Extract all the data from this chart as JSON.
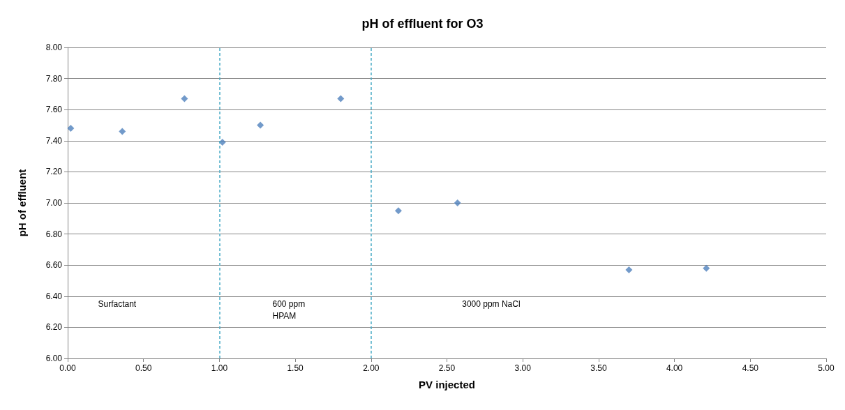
{
  "chart_data": {
    "type": "scatter",
    "title": "pH of effluent for O3",
    "xlabel": "PV injected",
    "ylabel": "pH of effluent",
    "x": [
      0.02,
      0.36,
      0.77,
      1.02,
      1.27,
      1.8,
      2.18,
      2.57,
      3.7,
      4.21
    ],
    "values": [
      7.48,
      7.46,
      7.67,
      7.39,
      7.5,
      7.67,
      6.95,
      7.0,
      6.57,
      6.58
    ],
    "color": "#4f81bd",
    "marker": "diamond",
    "xlim": [
      0,
      5
    ],
    "xticks": [
      {
        "value": 0,
        "label": "0.00"
      },
      {
        "value": 0.5,
        "label": "0.50"
      },
      {
        "value": 1,
        "label": "1.00"
      },
      {
        "value": 1.5,
        "label": "1.50"
      },
      {
        "value": 2,
        "label": "2.00"
      },
      {
        "value": 2.5,
        "label": "2.50"
      },
      {
        "value": 3,
        "label": "3.00"
      },
      {
        "value": 3.5,
        "label": "3.50"
      },
      {
        "value": 4,
        "label": "4.00"
      },
      {
        "value": 4.5,
        "label": "4.50"
      },
      {
        "value": 5,
        "label": "5.00"
      }
    ],
    "ylim": [
      6,
      8
    ],
    "yticks": [
      {
        "value": 6,
        "label": "6.00"
      },
      {
        "value": 6.2,
        "label": "6.20"
      },
      {
        "value": 6.4,
        "label": "6.40"
      },
      {
        "value": 6.6,
        "label": "6.60"
      },
      {
        "value": 6.8,
        "label": "6.80"
      },
      {
        "value": 7,
        "label": "7.00"
      },
      {
        "value": 7.2,
        "label": "7.20"
      },
      {
        "value": 7.4,
        "label": "7.40"
      },
      {
        "value": 7.6,
        "label": "7.60"
      },
      {
        "value": 7.8,
        "label": "7.80"
      },
      {
        "value": 8,
        "label": "8.00"
      }
    ],
    "grid": "y",
    "ref_lines": [
      {
        "axis": "x",
        "value": 1,
        "color": "#4bacc6",
        "line_style": "dashed"
      },
      {
        "axis": "x",
        "value": 2,
        "color": "#4bacc6",
        "line_style": "dashed"
      }
    ],
    "annotations": [
      "Surfactant",
      "600 ppm\nHPAM",
      "3000 ppm NaCl"
    ]
  }
}
